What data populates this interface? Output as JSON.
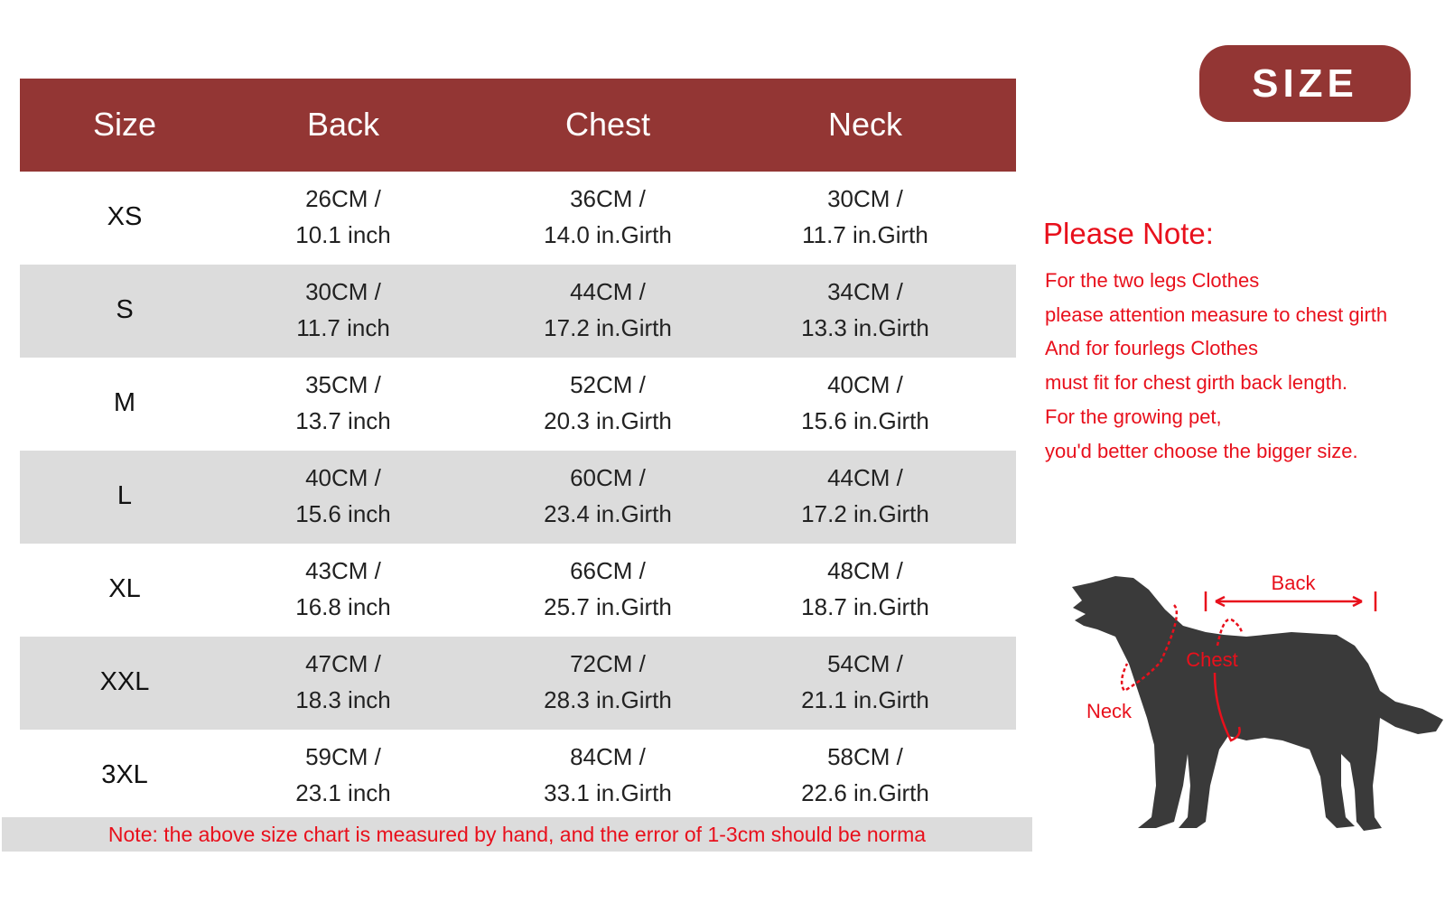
{
  "badge": "SIZE",
  "table": {
    "headers": [
      "Size",
      "Back",
      "Chest",
      "Neck"
    ],
    "rows": [
      {
        "size": "XS",
        "back": "26CM /\n10.1 inch",
        "chest": "36CM /\n14.0 in.Girth",
        "neck": "30CM /\n11.7 in.Girth"
      },
      {
        "size": "S",
        "back": "30CM /\n11.7 inch",
        "chest": "44CM /\n17.2 in.Girth",
        "neck": "34CM /\n13.3 in.Girth"
      },
      {
        "size": "M",
        "back": "35CM /\n13.7 inch",
        "chest": "52CM /\n20.3 in.Girth",
        "neck": "40CM /\n15.6 in.Girth"
      },
      {
        "size": "L",
        "back": "40CM /\n15.6 inch",
        "chest": "60CM /\n23.4 in.Girth",
        "neck": "44CM /\n17.2 in.Girth"
      },
      {
        "size": "XL",
        "back": "43CM /\n16.8 inch",
        "chest": "66CM /\n25.7 in.Girth",
        "neck": "48CM /\n18.7 in.Girth"
      },
      {
        "size": "XXL",
        "back": "47CM /\n18.3 inch",
        "chest": "72CM /\n28.3 in.Girth",
        "neck": "54CM /\n21.1 in.Girth"
      },
      {
        "size": "3XL",
        "back": "59CM /\n23.1 inch",
        "chest": "84CM /\n33.1 in.Girth",
        "neck": "58CM /\n22.6 in.Girth"
      }
    ]
  },
  "footnote": "Note: the above size chart is measured by hand, and the error of 1-3cm should be norma",
  "please_note": {
    "title": "Please Note:",
    "lines": [
      "For the two legs Clothes",
      "please attention measure to chest girth",
      "And for fourlegs Clothes",
      "must fit for chest girth back length.",
      "For the growing pet,",
      "you'd better choose the bigger size."
    ]
  },
  "diagram": {
    "back": "Back",
    "chest": "Chest",
    "neck": "Neck"
  },
  "colors": {
    "header": "#933634",
    "accent_red": "#e8101c",
    "alt_row": "#dcdcdc",
    "dog": "#3a3a3a"
  }
}
